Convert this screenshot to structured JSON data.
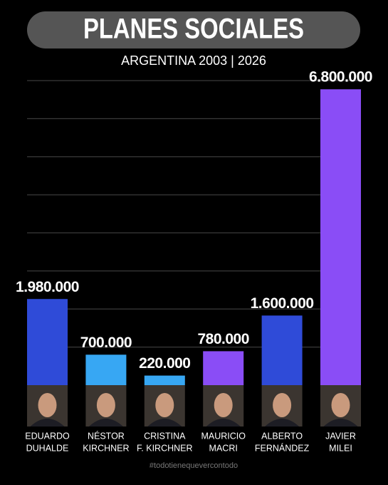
{
  "chart_data": {
    "type": "bar",
    "title": "PLANES SOCIALES",
    "subtitle": "ARGENTINA 2003 | 2026",
    "categories": [
      [
        "EDUARDO",
        "DUHALDE"
      ],
      [
        "NÉSTOR",
        "KIRCHNER"
      ],
      [
        "CRISTINA",
        "F. KIRCHNER"
      ],
      [
        "MAURICIO",
        "MACRI"
      ],
      [
        "ALBERTO",
        "FERNÁNDEZ"
      ],
      [
        "JAVIER",
        "MILEI"
      ]
    ],
    "values": [
      1980000,
      700000,
      220000,
      780000,
      1600000,
      6800000
    ],
    "value_labels": [
      "1.980.000",
      "700.000",
      "220.000",
      "780.000",
      "1.600.000",
      "6.800.000"
    ],
    "colors": [
      "#2f4bd8",
      "#37a7f3",
      "#37a7f3",
      "#8a4df6",
      "#2f4bd8",
      "#8a4df6"
    ],
    "ylim": [
      0,
      7000000
    ],
    "grid": true,
    "footer": "#todotienequevercontodo"
  }
}
